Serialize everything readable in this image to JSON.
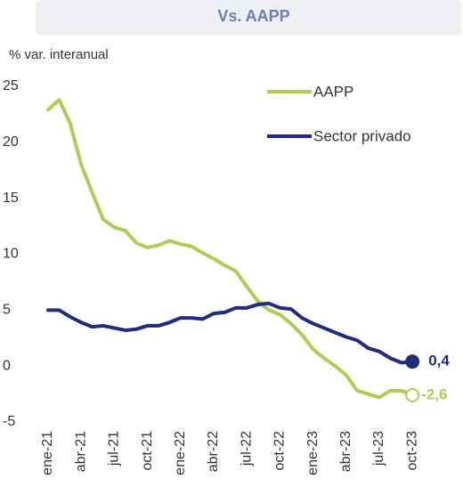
{
  "chart_data": {
    "type": "line",
    "header": "Vs. AAPP",
    "ylabel": "% var.  interanual",
    "categories": [
      "ene-21",
      null,
      null,
      "abr-21",
      null,
      null,
      "jul-21",
      null,
      null,
      "oct-21",
      null,
      null,
      "ene-22",
      null,
      null,
      "abr-22",
      null,
      null,
      "jul-22",
      null,
      null,
      "oct-22",
      null,
      null,
      "ene-23",
      null,
      null,
      "abr-23",
      null,
      null,
      "jul-23",
      null,
      null,
      "oct-23"
    ],
    "ylim": [
      -5,
      25
    ],
    "yticks": [
      -5,
      0,
      5,
      10,
      15,
      20,
      25
    ],
    "grid": false,
    "legend": "upper right",
    "series": [
      {
        "name": "AAPP",
        "color": "#afcd52",
        "marker": "hollow",
        "end_label": "-2,6",
        "values": [
          22.9,
          23.8,
          21.7,
          18.0,
          15.5,
          13.1,
          12.4,
          12.1,
          11.0,
          10.6,
          10.8,
          11.2,
          10.9,
          10.7,
          10.1,
          9.6,
          9.0,
          8.5,
          7.1,
          5.8,
          5.0,
          4.6,
          3.8,
          2.8,
          1.5,
          0.7,
          0.0,
          -0.8,
          -2.2,
          -2.5,
          -2.8,
          -2.2,
          -2.2,
          -2.6
        ]
      },
      {
        "name": "Sector privado",
        "color": "#1f2d7b",
        "marker": "filled",
        "end_label": "0,4",
        "values": [
          5.0,
          5.0,
          4.4,
          3.9,
          3.5,
          3.6,
          3.4,
          3.2,
          3.3,
          3.6,
          3.6,
          3.9,
          4.3,
          4.3,
          4.2,
          4.7,
          4.8,
          5.2,
          5.2,
          5.5,
          5.6,
          5.2,
          5.1,
          4.3,
          3.8,
          3.4,
          3.0,
          2.6,
          2.3,
          1.6,
          1.3,
          0.7,
          0.3,
          0.4
        ]
      }
    ]
  }
}
